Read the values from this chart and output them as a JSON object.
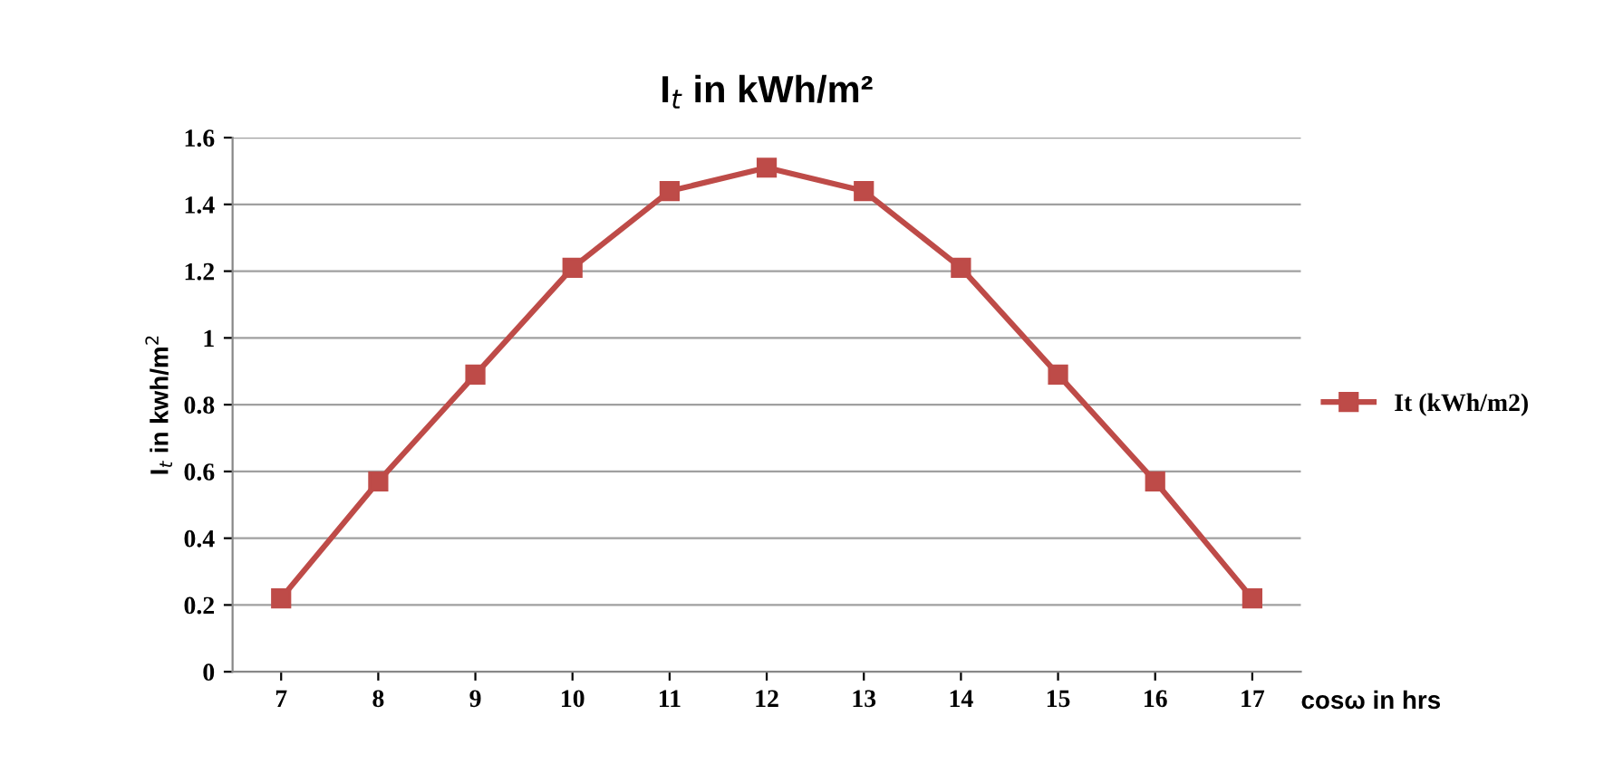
{
  "chart_data": {
    "type": "line",
    "title": "I$_{t}$ in kWh/m²",
    "xlabel": "cosω in hrs",
    "ylabel": "I$_{t}$ in kwh/m$^{2}$",
    "categories": [
      "7",
      "8",
      "9",
      "10",
      "11",
      "12",
      "13",
      "14",
      "15",
      "16",
      "17"
    ],
    "series": [
      {
        "name": "It (kWh/m2)",
        "color": "#be4b48",
        "values": [
          0.22,
          0.57,
          0.89,
          1.21,
          1.44,
          1.51,
          1.44,
          1.21,
          0.89,
          0.57,
          0.22
        ]
      }
    ],
    "ylim": [
      0,
      1.6
    ],
    "yticks": [
      0,
      0.2,
      0.4,
      0.6,
      0.8,
      1,
      1.2,
      1.4,
      1.6
    ],
    "grid": "y",
    "legend": "right",
    "marker": "square",
    "line_style": "solid"
  }
}
